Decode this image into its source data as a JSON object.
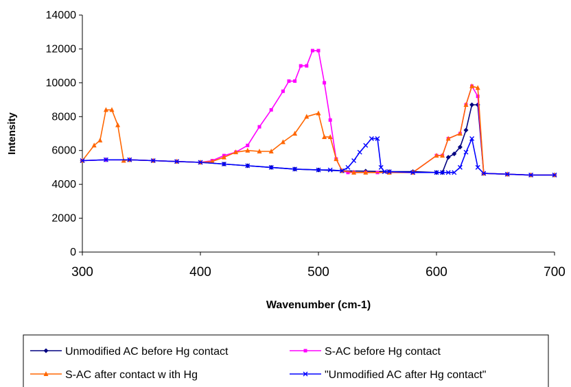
{
  "chart_data": {
    "type": "line",
    "xlabel": "Wavenumber (cm-1)",
    "ylabel": "Intensity",
    "xlim": [
      300,
      700
    ],
    "ylim": [
      0,
      14000
    ],
    "xticks": [
      300,
      400,
      500,
      600,
      700
    ],
    "yticks": [
      0,
      2000,
      4000,
      6000,
      8000,
      10000,
      12000,
      14000
    ],
    "grid": false,
    "legend_position": "bottom",
    "series": [
      {
        "name": "Unmodified AC before Hg contact",
        "color": "#000080",
        "marker": "diamond",
        "x": [
          300,
          320,
          340,
          360,
          380,
          400,
          420,
          440,
          460,
          480,
          500,
          520,
          540,
          560,
          580,
          600,
          605,
          610,
          615,
          620,
          625,
          630,
          635,
          640,
          660,
          680,
          700
        ],
        "y": [
          5400,
          5450,
          5450,
          5400,
          5350,
          5300,
          5200,
          5100,
          5000,
          4900,
          4850,
          4800,
          4780,
          4750,
          4750,
          4700,
          4700,
          5600,
          5800,
          6200,
          7200,
          8700,
          8700,
          4650,
          4600,
          4550,
          4550
        ]
      },
      {
        "name": "S-AC before Hg contact",
        "color": "#ff00ff",
        "marker": "square",
        "x": [
          300,
          320,
          340,
          360,
          380,
          400,
          410,
          420,
          430,
          440,
          450,
          460,
          470,
          475,
          480,
          485,
          490,
          495,
          500,
          505,
          510,
          515,
          520,
          525,
          530,
          540,
          550,
          560,
          580,
          600,
          605,
          610,
          620,
          625,
          630,
          635,
          640,
          660,
          680,
          700
        ],
        "y": [
          5400,
          5450,
          5450,
          5400,
          5350,
          5300,
          5400,
          5700,
          5900,
          6300,
          7400,
          8400,
          9500,
          10100,
          10100,
          11000,
          11000,
          11900,
          11900,
          10000,
          7800,
          5500,
          4800,
          4700,
          4700,
          4700,
          4700,
          4700,
          4700,
          5700,
          5700,
          6700,
          7000,
          8700,
          9800,
          9200,
          4650,
          4600,
          4550,
          4550
        ]
      },
      {
        "name": "S-AC after contact w ith Hg",
        "color": "#ff6600",
        "marker": "triangle",
        "x": [
          300,
          310,
          315,
          320,
          325,
          330,
          335,
          340,
          360,
          380,
          400,
          410,
          420,
          430,
          440,
          450,
          460,
          470,
          480,
          490,
          500,
          505,
          510,
          515,
          520,
          530,
          540,
          560,
          580,
          600,
          605,
          610,
          620,
          625,
          630,
          635,
          640,
          660,
          680,
          700
        ],
        "y": [
          5400,
          6300,
          6600,
          8400,
          8400,
          7500,
          5400,
          5450,
          5400,
          5350,
          5300,
          5350,
          5600,
          5900,
          6000,
          5950,
          5950,
          6500,
          7000,
          8000,
          8200,
          6800,
          6800,
          5500,
          4800,
          4700,
          4700,
          4700,
          4700,
          5700,
          5700,
          6700,
          7000,
          8700,
          9800,
          9700,
          4650,
          4600,
          4550,
          4550
        ]
      },
      {
        "name": "\"Unmodified AC after Hg contact\"",
        "color": "#0000ff",
        "marker": "x",
        "x": [
          300,
          320,
          340,
          360,
          380,
          400,
          420,
          440,
          460,
          480,
          500,
          510,
          520,
          525,
          530,
          535,
          540,
          545,
          550,
          553,
          556,
          560,
          580,
          600,
          605,
          610,
          615,
          620,
          625,
          630,
          635,
          640,
          660,
          680,
          700
        ],
        "y": [
          5400,
          5450,
          5450,
          5400,
          5350,
          5300,
          5200,
          5100,
          5000,
          4900,
          4850,
          4850,
          4800,
          5000,
          5400,
          5900,
          6300,
          6700,
          6700,
          5000,
          4750,
          4750,
          4700,
          4700,
          4700,
          4700,
          4700,
          5000,
          5900,
          6700,
          5000,
          4650,
          4600,
          4550,
          4550
        ]
      }
    ]
  }
}
